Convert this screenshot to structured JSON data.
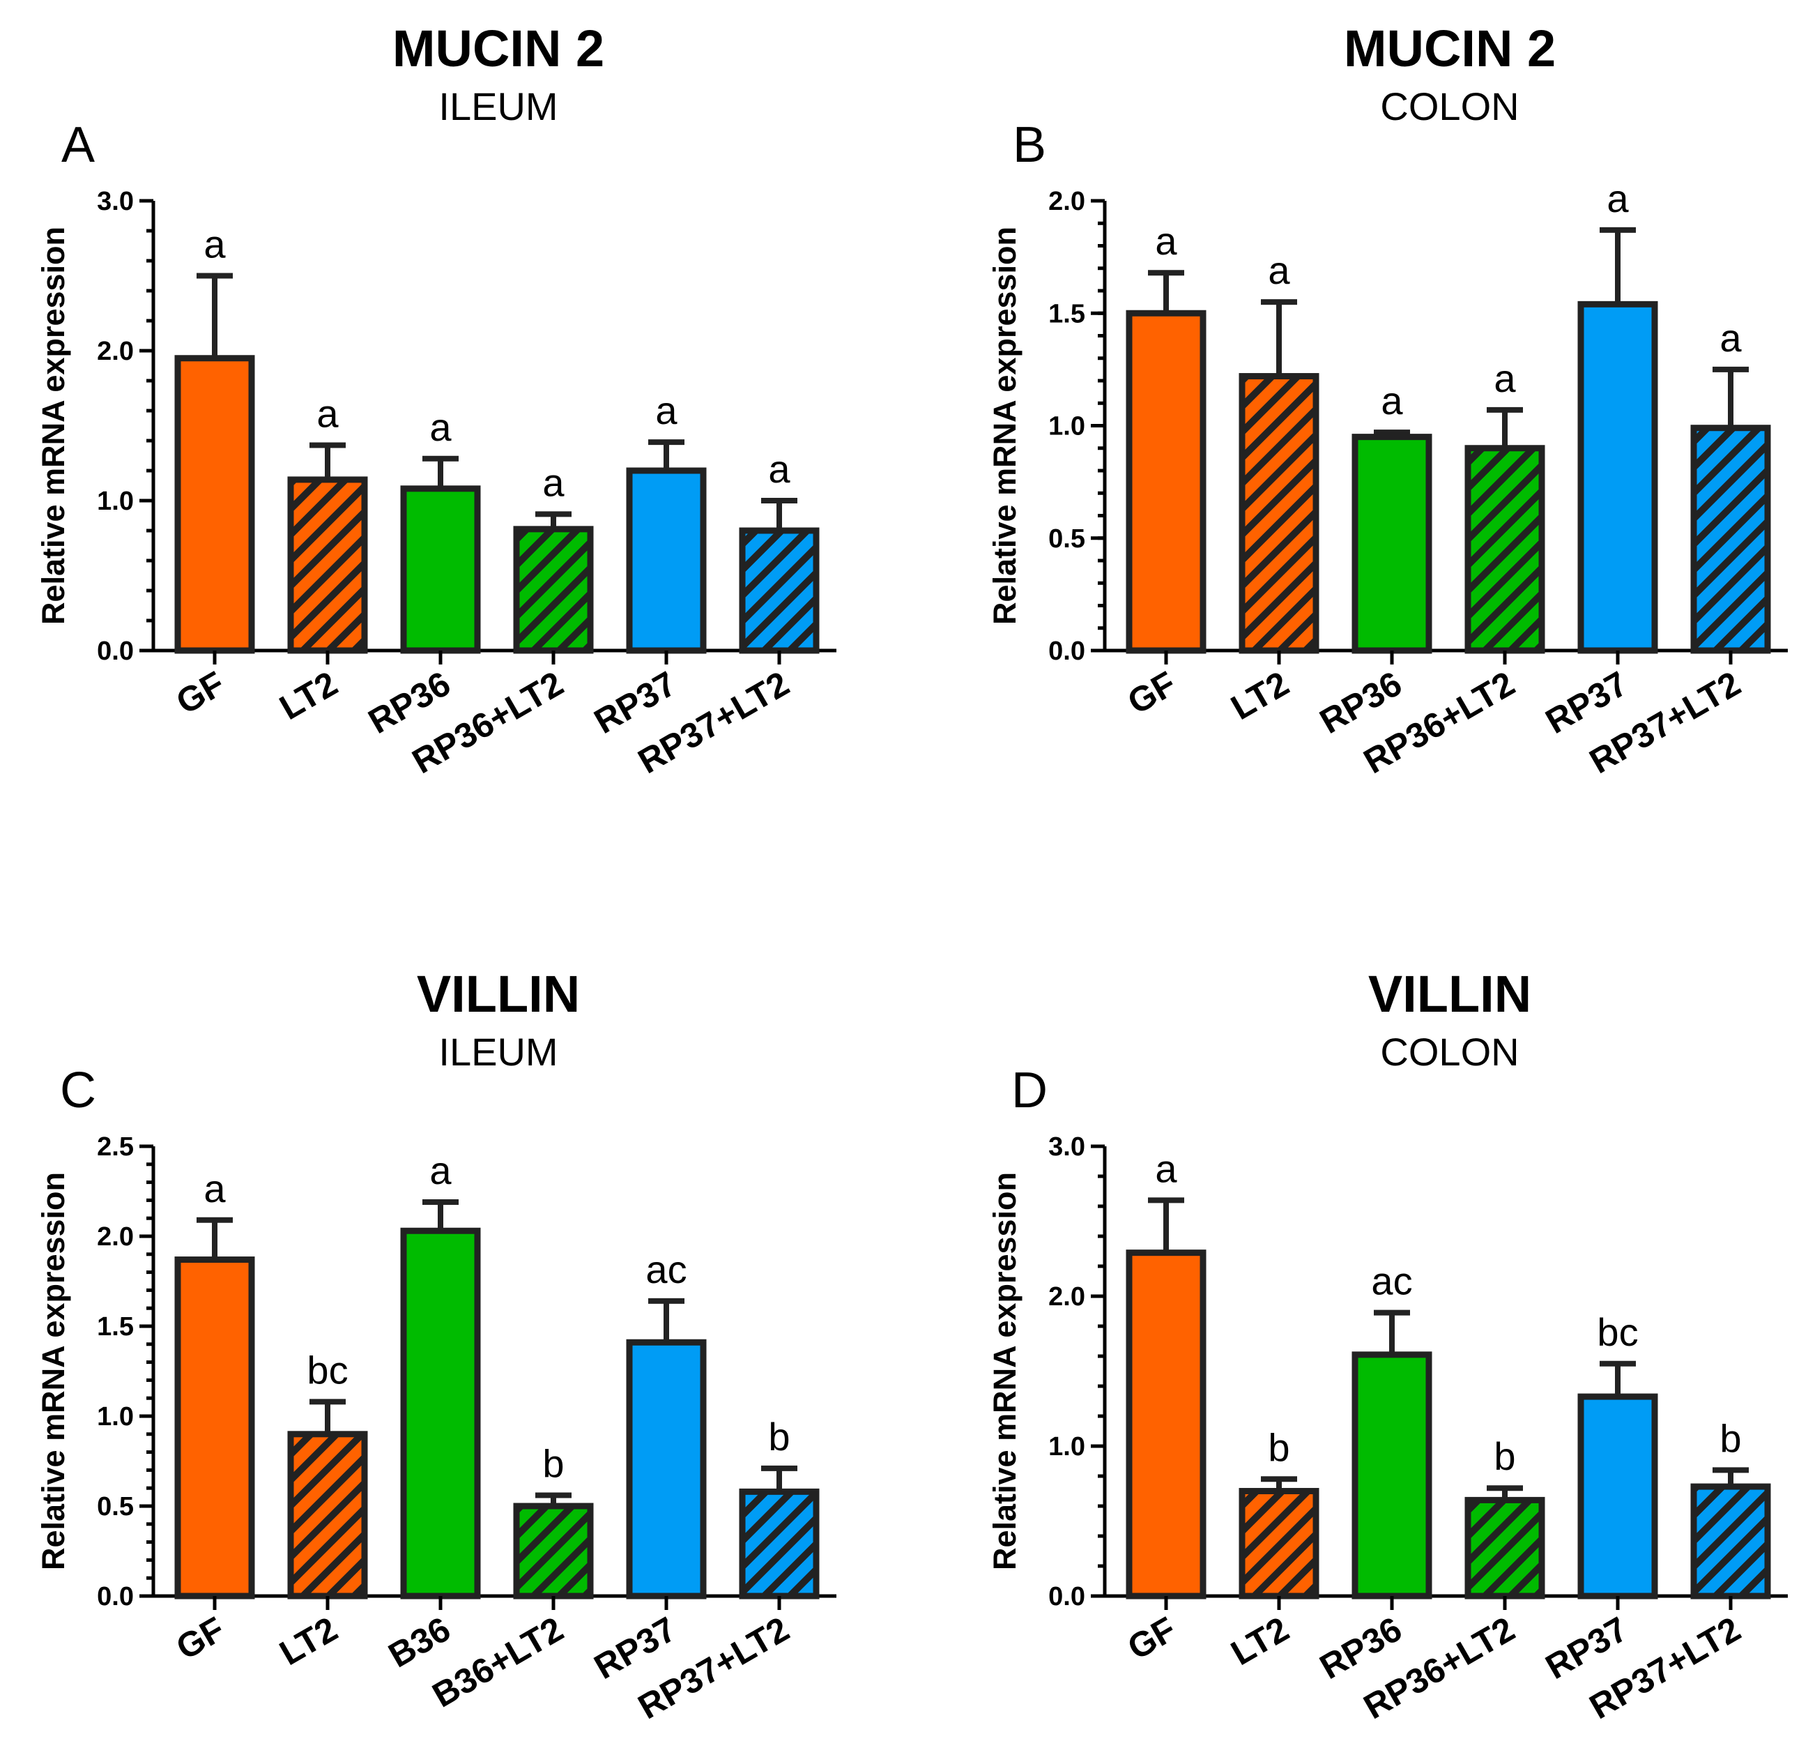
{
  "figure": {
    "colors": {
      "orange": "#ff6200",
      "green": "#00bb00",
      "blue": "#009cf5",
      "outline": "#222222"
    }
  },
  "chart_data": [
    {
      "type": "bar",
      "panel": "A",
      "title": "MUCIN 2",
      "subtitle": "ILEUM",
      "ylabel": "Relative mRNA expression",
      "xlabel": "",
      "ylim": [
        0,
        3.0
      ],
      "yticks": [
        "0.0",
        "1.0",
        "2.0",
        "3.0"
      ],
      "minor_step": 0.2,
      "categories": [
        "GF",
        "LT2",
        "RP36",
        "RP36+LT2",
        "RP37",
        "RP37+LT2"
      ],
      "values": [
        1.95,
        1.14,
        1.08,
        0.81,
        1.2,
        0.8
      ],
      "errors": [
        0.55,
        0.23,
        0.2,
        0.1,
        0.19,
        0.2
      ],
      "significance": [
        "a",
        "a",
        "a",
        "a",
        "a",
        "a"
      ],
      "fills": [
        "orange",
        "orange",
        "green",
        "green",
        "blue",
        "blue"
      ],
      "hatched": [
        false,
        true,
        false,
        true,
        false,
        true
      ]
    },
    {
      "type": "bar",
      "panel": "B",
      "title": "MUCIN 2",
      "subtitle": "COLON",
      "ylabel": "Relative mRNA expression",
      "xlabel": "",
      "ylim": [
        0,
        2.0
      ],
      "yticks": [
        "0.0",
        "0.5",
        "1.0",
        "1.5",
        "2.0"
      ],
      "minor_step": 0.1,
      "categories": [
        "GF",
        "LT2",
        "RP36",
        "RP36+LT2",
        "RP37",
        "RP37+LT2"
      ],
      "values": [
        1.5,
        1.22,
        0.95,
        0.9,
        1.54,
        0.99
      ],
      "errors": [
        0.18,
        0.33,
        0.02,
        0.17,
        0.33,
        0.26
      ],
      "significance": [
        "a",
        "a",
        "a",
        "a",
        "a",
        "a"
      ],
      "fills": [
        "orange",
        "orange",
        "green",
        "green",
        "blue",
        "blue"
      ],
      "hatched": [
        false,
        true,
        false,
        true,
        false,
        true
      ]
    },
    {
      "type": "bar",
      "panel": "C",
      "title": "VILLIN",
      "subtitle": "ILEUM",
      "ylabel": "Relative mRNA expression",
      "xlabel": "",
      "ylim": [
        0,
        2.5
      ],
      "yticks": [
        "0.0",
        "0.5",
        "1.0",
        "1.5",
        "2.0",
        "2.5"
      ],
      "minor_step": 0.1,
      "categories": [
        "GF",
        "LT2",
        "B36",
        "B36+LT2",
        "RP37",
        "RP37+LT2"
      ],
      "values": [
        1.87,
        0.9,
        2.03,
        0.5,
        1.41,
        0.58
      ],
      "errors": [
        0.22,
        0.18,
        0.16,
        0.06,
        0.23,
        0.13
      ],
      "significance": [
        "a",
        "bc",
        "a",
        "b",
        "ac",
        "b"
      ],
      "fills": [
        "orange",
        "orange",
        "green",
        "green",
        "blue",
        "blue"
      ],
      "hatched": [
        false,
        true,
        false,
        true,
        false,
        true
      ]
    },
    {
      "type": "bar",
      "panel": "D",
      "title": "VILLIN",
      "subtitle": "COLON",
      "ylabel": "Relative mRNA expression",
      "xlabel": "",
      "ylim": [
        0,
        3.0
      ],
      "yticks": [
        "0.0",
        "1.0",
        "2.0",
        "3.0"
      ],
      "minor_step": 0.2,
      "categories": [
        "GF",
        "LT2",
        "RP36",
        "RP36+LT2",
        "RP37",
        "RP37+LT2"
      ],
      "values": [
        2.29,
        0.7,
        1.61,
        0.64,
        1.33,
        0.73
      ],
      "errors": [
        0.35,
        0.08,
        0.28,
        0.08,
        0.22,
        0.11
      ],
      "significance": [
        "a",
        "b",
        "ac",
        "b",
        "bc",
        "b"
      ],
      "fills": [
        "orange",
        "orange",
        "green",
        "green",
        "blue",
        "blue"
      ],
      "hatched": [
        false,
        true,
        false,
        true,
        false,
        true
      ]
    }
  ]
}
